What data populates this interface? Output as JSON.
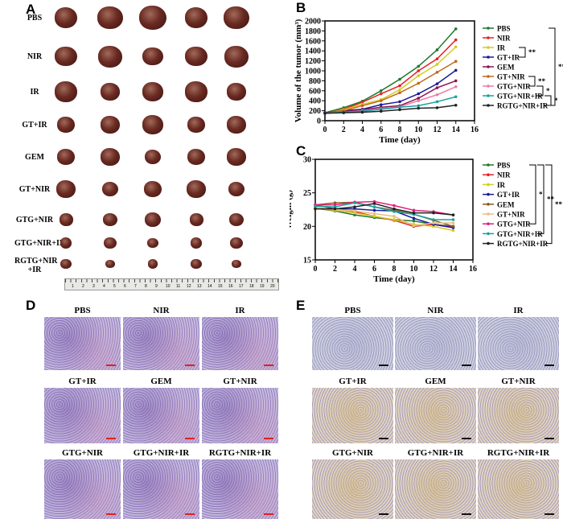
{
  "panels": {
    "a": "A",
    "b": "B",
    "c": "C",
    "d": "D",
    "e": "E"
  },
  "panel_a": {
    "groups": [
      "PBS",
      "NIR",
      "IR",
      "GT+IR",
      "GEM",
      "GT+NIR",
      "GTG+NIR",
      "GTG+NIR+IR",
      "RGTG+NIR +IR"
    ],
    "ruler_numbers": [
      "1",
      "2",
      "3",
      "4",
      "5",
      "6",
      "7",
      "8",
      "9",
      "10",
      "11",
      "12",
      "13",
      "14",
      "15",
      "16",
      "17",
      "18",
      "19",
      "20"
    ]
  },
  "colors": {
    "PBS": "#1d7a2d",
    "NIR": "#e82028",
    "IR": "#d4cc20",
    "GT+IR": "#1a1a9c",
    "GEM": "#8a1452",
    "GT+NIR": "#c0681e",
    "GTG+NIR": "#f27aa6",
    "GTG+NIR+IR": "#1aa0a0",
    "RGTG+NIR+IR": "#222222",
    "GEM_c": "#8a5a1e",
    "GT+NIR_c": "#e8c080",
    "GTG+NIR_c": "#e0207a"
  },
  "chart_data": [
    {
      "type": "line",
      "title": "",
      "xlabel": "Time (day)",
      "ylabel": "Volume of the tumor (mm³)",
      "xlim": [
        0,
        16
      ],
      "ylim": [
        0,
        2000
      ],
      "xticks": [
        0,
        2,
        4,
        6,
        8,
        10,
        12,
        14,
        16
      ],
      "yticks": [
        0,
        200,
        400,
        600,
        800,
        1000,
        1200,
        1400,
        1600,
        1800,
        2000
      ],
      "legend": "right",
      "x": [
        0,
        2,
        4,
        6,
        8,
        10,
        12,
        14
      ],
      "series": [
        {
          "name": "PBS",
          "values": [
            160,
            260,
            390,
            600,
            830,
            1090,
            1420,
            1840
          ]
        },
        {
          "name": "NIR",
          "values": [
            150,
            230,
            370,
            540,
            700,
            1000,
            1240,
            1620
          ]
        },
        {
          "name": "IR",
          "values": [
            150,
            220,
            330,
            420,
            620,
            900,
            1130,
            1480
          ]
        },
        {
          "name": "GT+IR",
          "values": [
            160,
            200,
            230,
            320,
            380,
            540,
            740,
            1010
          ]
        },
        {
          "name": "GEM",
          "values": [
            150,
            180,
            220,
            270,
            300,
            450,
            660,
            800
          ]
        },
        {
          "name": "GT+NIR",
          "values": [
            150,
            200,
            300,
            400,
            560,
            750,
            970,
            1190
          ]
        },
        {
          "name": "GTG+NIR",
          "values": [
            150,
            170,
            200,
            240,
            280,
            400,
            520,
            680
          ]
        },
        {
          "name": "GTG+NIR+IR",
          "values": [
            150,
            170,
            190,
            230,
            270,
            300,
            380,
            480
          ]
        },
        {
          "name": "RGTG+NIR+IR",
          "values": [
            150,
            160,
            170,
            190,
            220,
            250,
            260,
            310
          ]
        }
      ],
      "significance": [
        {
          "between": [
            "IR",
            "GT+IR"
          ],
          "mark": "**"
        },
        {
          "between": [
            "PBS",
            "RGTG+NIR+IR"
          ],
          "mark": "***"
        },
        {
          "between": [
            "GT+NIR",
            "GTG+NIR"
          ],
          "mark": "**"
        },
        {
          "between": [
            "GTG+NIR",
            "GTG+NIR+IR"
          ],
          "mark": "*"
        },
        {
          "between": [
            "GTG+NIR+IR",
            "RGTG+NIR+IR"
          ],
          "mark": "*"
        }
      ]
    },
    {
      "type": "line",
      "title": "",
      "xlabel": "Time (day)",
      "ylabel": "Weight (g)",
      "xlim": [
        0,
        16
      ],
      "ylim": [
        15,
        30
      ],
      "xticks": [
        0,
        2,
        4,
        6,
        8,
        10,
        12,
        14,
        16
      ],
      "yticks": [
        15,
        20,
        25,
        30
      ],
      "legend": "right",
      "x": [
        0,
        2,
        4,
        6,
        8,
        10,
        12,
        14
      ],
      "series": [
        {
          "name": "PBS",
          "values": [
            22.7,
            22.3,
            21.7,
            21.3,
            21.0,
            20.8,
            20.3,
            20.0
          ]
        },
        {
          "name": "NIR",
          "values": [
            23.2,
            22.6,
            22.2,
            21.5,
            20.9,
            20.0,
            20.3,
            19.9
          ]
        },
        {
          "name": "IR",
          "values": [
            22.7,
            22.4,
            22.0,
            21.5,
            21.0,
            20.3,
            20.0,
            19.4
          ]
        },
        {
          "name": "GT+IR",
          "values": [
            22.7,
            22.6,
            22.6,
            22.4,
            22.3,
            21.2,
            20.3,
            19.8
          ]
        },
        {
          "name": "GEM",
          "values": [
            23.2,
            23.5,
            23.6,
            22.9,
            22.4,
            21.8,
            20.9,
            20.0
          ]
        },
        {
          "name": "GT+NIR",
          "values": [
            22.8,
            22.5,
            22.3,
            21.9,
            21.5,
            20.1,
            20.5,
            20.5
          ]
        },
        {
          "name": "GTG+NIR",
          "values": [
            23.2,
            23.2,
            23.6,
            23.7,
            23.1,
            22.4,
            22.2,
            21.7
          ]
        },
        {
          "name": "GTG+NIR+IR",
          "values": [
            23.0,
            22.9,
            23.5,
            22.9,
            22.2,
            21.8,
            21.0,
            21.0
          ]
        },
        {
          "name": "RGTG+NIR+IR",
          "values": [
            22.6,
            22.6,
            22.9,
            23.4,
            22.6,
            22.0,
            22.0,
            21.7
          ]
        }
      ],
      "significance": [
        {
          "between": [
            "PBS",
            "GTG+NIR"
          ],
          "mark": "*"
        },
        {
          "between": [
            "PBS",
            "GTG+NIR+IR"
          ],
          "mark": "**"
        },
        {
          "between": [
            "PBS",
            "RGTG+NIR+IR"
          ],
          "mark": "**"
        }
      ]
    }
  ],
  "panel_d": {
    "labels": [
      "PBS",
      "NIR",
      "IR",
      "GT+IR",
      "GEM",
      "GT+NIR",
      "GTG+NIR",
      "GTG+NIR+IR",
      "RGTG+NIR+IR"
    ]
  },
  "panel_e": {
    "labels": [
      "PBS",
      "NIR",
      "IR",
      "GT+IR",
      "GEM",
      "GT+NIR",
      "GTG+NIR",
      "GTG+NIR+IR",
      "RGTG+NIR+IR"
    ]
  }
}
